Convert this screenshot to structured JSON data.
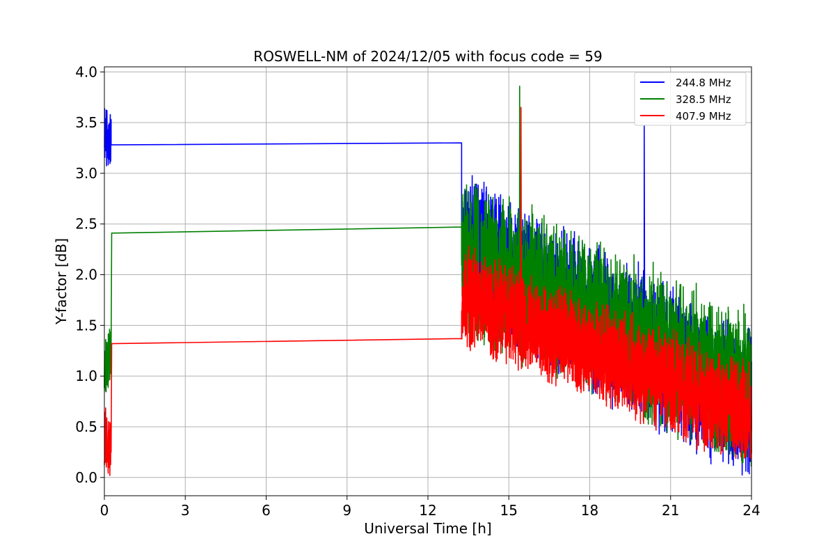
{
  "chart_data": {
    "type": "line",
    "title": "ROSWELL-NM of 2024/12/05 with focus code = 59",
    "xlabel": "Universal Time [h]",
    "ylabel": "Y-factor [dB]",
    "xlim": [
      0,
      24
    ],
    "ylim": [
      -0.18,
      4.05
    ],
    "x_ticks": [
      0,
      3,
      6,
      9,
      12,
      15,
      18,
      21,
      24
    ],
    "y_ticks": [
      0.0,
      0.5,
      1.0,
      1.5,
      2.0,
      2.5,
      3.0,
      3.5,
      4.0
    ],
    "grid": true,
    "legend_position": "top-right",
    "series": [
      {
        "name": "244.8 MHz",
        "color": "#0000ff",
        "segments": [
          {
            "t0": 0.0,
            "t1": 0.25,
            "base_start": 3.45,
            "base_end": 3.28,
            "noise": 0.55,
            "min": 2.73,
            "max": 3.85,
            "seed": 11
          },
          {
            "t0": 0.25,
            "t1": 13.25,
            "base_start": 3.28,
            "base_end": 3.3,
            "noise": 0.0
          },
          {
            "t0": 13.25,
            "t1": 24.0,
            "base_start": 2.3,
            "base_end": 0.7,
            "noise": 1.15,
            "min": 0.0,
            "max": 3.63,
            "seed": 17,
            "spikes": [
              [
                20.02,
                3.47
              ]
            ]
          }
        ]
      },
      {
        "name": "328.5 MHz",
        "color": "#008000",
        "segments": [
          {
            "t0": 0.0,
            "t1": 0.25,
            "base_start": 1.05,
            "base_end": 1.3,
            "noise": 0.55,
            "min": 0.68,
            "max": 1.57,
            "seed": 23
          },
          {
            "t0": 0.25,
            "t1": 0.27,
            "base_start": 1.3,
            "base_end": 2.41,
            "noise": 0.0
          },
          {
            "t0": 0.27,
            "t1": 13.25,
            "base_start": 2.41,
            "base_end": 2.47,
            "noise": 0.0
          },
          {
            "t0": 13.25,
            "t1": 24.0,
            "base_start": 2.2,
            "base_end": 0.85,
            "noise": 1.2,
            "min": 0.0,
            "max": 3.86,
            "seed": 29,
            "spikes": [
              [
                15.4,
                3.86
              ]
            ]
          }
        ]
      },
      {
        "name": "407.9 MHz",
        "color": "#ff0000",
        "segments": [
          {
            "t0": 0.0,
            "t1": 0.25,
            "base_start": 0.35,
            "base_end": 0.25,
            "noise": 0.55,
            "min": 0.02,
            "max": 0.7,
            "seed": 31
          },
          {
            "t0": 0.25,
            "t1": 0.27,
            "base_start": 0.25,
            "base_end": 1.32,
            "noise": 0.0
          },
          {
            "t0": 0.27,
            "t1": 13.25,
            "base_start": 1.32,
            "base_end": 1.37,
            "noise": 0.0
          },
          {
            "t0": 13.25,
            "t1": 24.0,
            "base_start": 1.8,
            "base_end": 0.6,
            "noise": 0.8,
            "min": 0.0,
            "max": 3.65,
            "seed": 37,
            "spikes": [
              [
                15.45,
                3.65
              ]
            ]
          }
        ]
      }
    ]
  }
}
